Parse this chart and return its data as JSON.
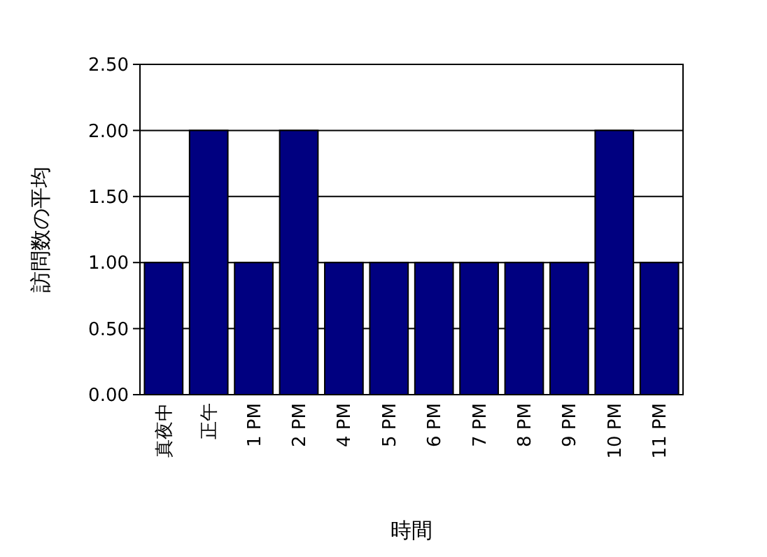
{
  "chart_data": {
    "type": "bar",
    "xlabel": "時間",
    "ylabel": "訪問数の平均",
    "categories": [
      "真夜中",
      "正午",
      "1 PM",
      "2 PM",
      "4 PM",
      "5 PM",
      "6 PM",
      "7 PM",
      "8 PM",
      "9 PM",
      "10 PM",
      "11 PM"
    ],
    "values": [
      1,
      2,
      1,
      2,
      1,
      1,
      1,
      1,
      1,
      1,
      2,
      1
    ],
    "color": "#000080",
    "ylim": [
      0,
      2.5
    ],
    "yticks": [
      {
        "value": 0,
        "label": "0.00"
      },
      {
        "value": 0.5,
        "label": "0.50"
      },
      {
        "value": 1,
        "label": "1.00"
      },
      {
        "value": 1.5,
        "label": "1.50"
      },
      {
        "value": 2,
        "label": "2.00"
      },
      {
        "value": 2.5,
        "label": "2.50"
      }
    ],
    "grid": "y"
  }
}
